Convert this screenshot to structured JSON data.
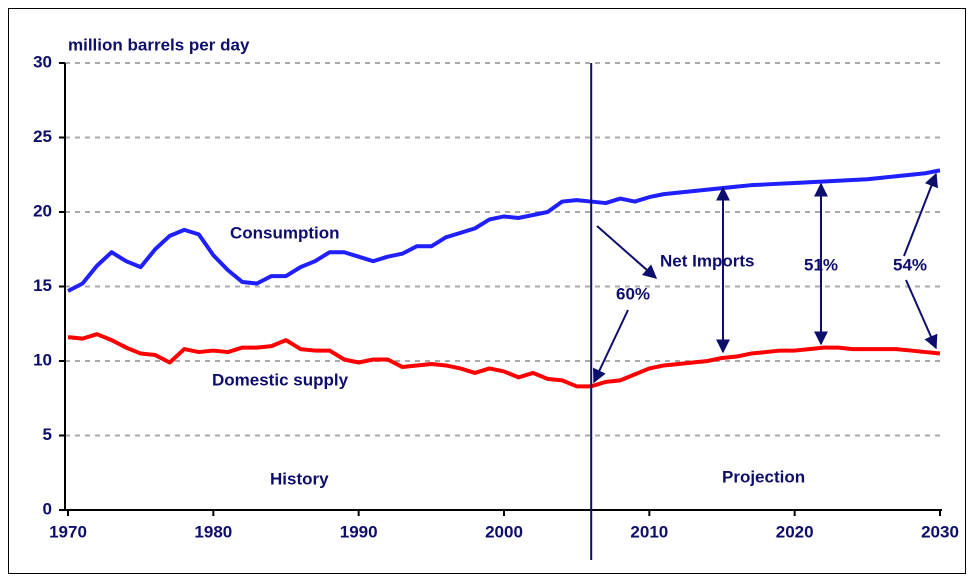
{
  "chart_data": {
    "type": "line",
    "y_axis_label": "million barrels per day",
    "annotations": [
      "Consumption",
      "Domestic supply",
      "History",
      "Projection",
      "Net Imports",
      "60%",
      "51%",
      "54%"
    ],
    "divider_x": 2006,
    "x": [
      1970,
      1971,
      1972,
      1973,
      1974,
      1975,
      1976,
      1977,
      1978,
      1979,
      1980,
      1981,
      1982,
      1983,
      1984,
      1985,
      1986,
      1987,
      1988,
      1989,
      1990,
      1991,
      1992,
      1993,
      1994,
      1995,
      1996,
      1997,
      1998,
      1999,
      2000,
      2001,
      2002,
      2003,
      2004,
      2005,
      2006,
      2007,
      2008,
      2009,
      2010,
      2011,
      2012,
      2013,
      2014,
      2015,
      2016,
      2017,
      2018,
      2019,
      2020,
      2021,
      2022,
      2023,
      2024,
      2025,
      2026,
      2027,
      2028,
      2029,
      2030
    ],
    "series": [
      {
        "name": "Consumption",
        "color": "#1f1fff",
        "values": [
          14.7,
          15.2,
          16.4,
          17.3,
          16.7,
          16.3,
          17.5,
          18.4,
          18.8,
          18.5,
          17.1,
          16.1,
          15.3,
          15.2,
          15.7,
          15.7,
          16.3,
          16.7,
          17.3,
          17.3,
          17.0,
          16.7,
          17.0,
          17.2,
          17.7,
          17.7,
          18.3,
          18.6,
          18.9,
          19.5,
          19.7,
          19.6,
          19.8,
          20.0,
          20.7,
          20.8,
          20.7,
          20.6,
          20.9,
          20.7,
          21.0,
          21.2,
          21.3,
          21.4,
          21.5,
          21.6,
          21.7,
          21.8,
          21.85,
          21.9,
          21.95,
          22.0,
          22.05,
          22.1,
          22.15,
          22.2,
          22.3,
          22.4,
          22.5,
          22.6,
          22.8
        ]
      },
      {
        "name": "Domestic supply",
        "color": "#ff0000",
        "values": [
          11.6,
          11.5,
          11.8,
          11.4,
          10.9,
          10.5,
          10.4,
          9.9,
          10.8,
          10.6,
          10.7,
          10.6,
          10.9,
          10.9,
          11.0,
          11.4,
          10.8,
          10.7,
          10.7,
          10.1,
          9.9,
          10.1,
          10.1,
          9.6,
          9.7,
          9.8,
          9.7,
          9.5,
          9.2,
          9.5,
          9.3,
          8.9,
          9.2,
          8.8,
          8.7,
          8.3,
          8.3,
          8.6,
          8.7,
          9.1,
          9.5,
          9.7,
          9.8,
          9.9,
          10.0,
          10.2,
          10.3,
          10.5,
          10.6,
          10.7,
          10.7,
          10.8,
          10.9,
          10.9,
          10.8,
          10.8,
          10.8,
          10.8,
          10.7,
          10.6,
          10.5
        ]
      }
    ],
    "xlim": [
      1970,
      2030
    ],
    "xticks": [
      1970,
      1980,
      1990,
      2000,
      2010,
      2020,
      2030
    ],
    "ylim": [
      0,
      30
    ],
    "yticks": [
      0,
      5,
      10,
      15,
      20,
      25,
      30
    ],
    "grid": true
  }
}
